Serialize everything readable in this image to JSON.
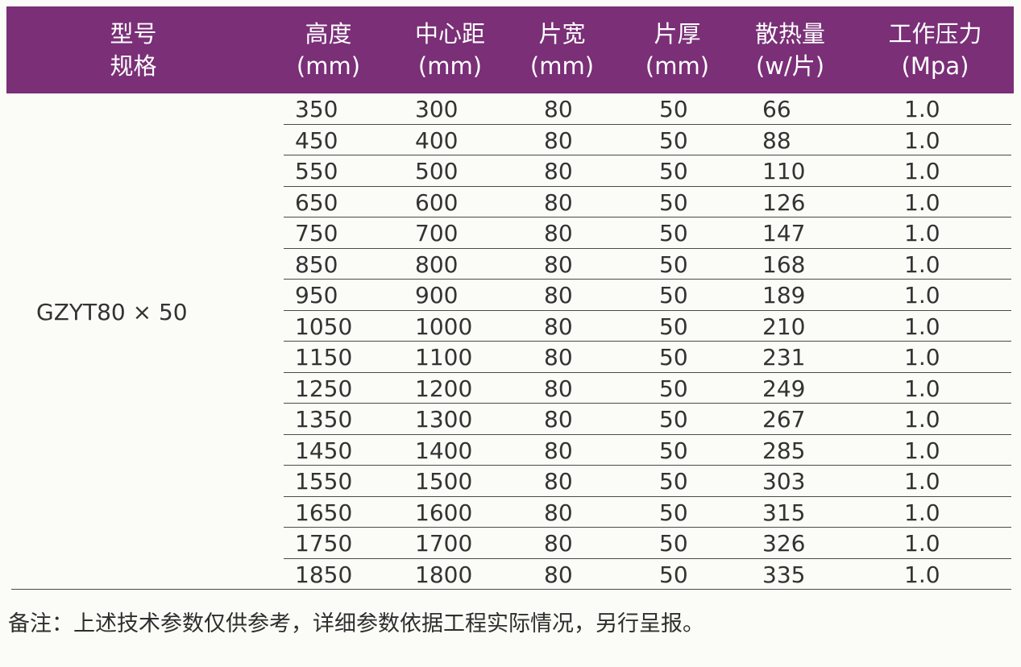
{
  "header": {
    "model_line1": "型号",
    "model_line2": "规格",
    "columns": [
      {
        "name": "高度",
        "unit": "(mm)"
      },
      {
        "name": "中心距",
        "unit": "(mm)"
      },
      {
        "name": "片宽",
        "unit": "(mm)"
      },
      {
        "name": "片厚",
        "unit": "(mm)"
      },
      {
        "name": "散热量",
        "unit": "(w/片)"
      },
      {
        "name": "工作压力",
        "unit": "(Mpa)"
      }
    ]
  },
  "model": "GZYT80 × 50",
  "rows": [
    [
      "350",
      "300",
      "80",
      "50",
      "66",
      "1.0"
    ],
    [
      "450",
      "400",
      "80",
      "50",
      "88",
      "1.0"
    ],
    [
      "550",
      "500",
      "80",
      "50",
      "110",
      "1.0"
    ],
    [
      "650",
      "600",
      "80",
      "50",
      "126",
      "1.0"
    ],
    [
      "750",
      "700",
      "80",
      "50",
      "147",
      "1.0"
    ],
    [
      "850",
      "800",
      "80",
      "50",
      "168",
      "1.0"
    ],
    [
      "950",
      "900",
      "80",
      "50",
      "189",
      "1.0"
    ],
    [
      "1050",
      "1000",
      "80",
      "50",
      "210",
      "1.0"
    ],
    [
      "1150",
      "1100",
      "80",
      "50",
      "231",
      "1.0"
    ],
    [
      "1250",
      "1200",
      "80",
      "50",
      "249",
      "1.0"
    ],
    [
      "1350",
      "1300",
      "80",
      "50",
      "267",
      "1.0"
    ],
    [
      "1450",
      "1400",
      "80",
      "50",
      "285",
      "1.0"
    ],
    [
      "1550",
      "1500",
      "80",
      "50",
      "303",
      "1.0"
    ],
    [
      "1650",
      "1600",
      "80",
      "50",
      "315",
      "1.0"
    ],
    [
      "1750",
      "1700",
      "80",
      "50",
      "326",
      "1.0"
    ],
    [
      "1850",
      "1800",
      "80",
      "50",
      "335",
      "1.0"
    ]
  ],
  "note": "备注：上述技术参数仅供参考，详细参数依据工程实际情况，另行呈报。",
  "colors": {
    "header_bg": "#7a2f77",
    "header_text": "#ffffff",
    "body_text": "#333333",
    "rule": "#4a4a4a"
  }
}
